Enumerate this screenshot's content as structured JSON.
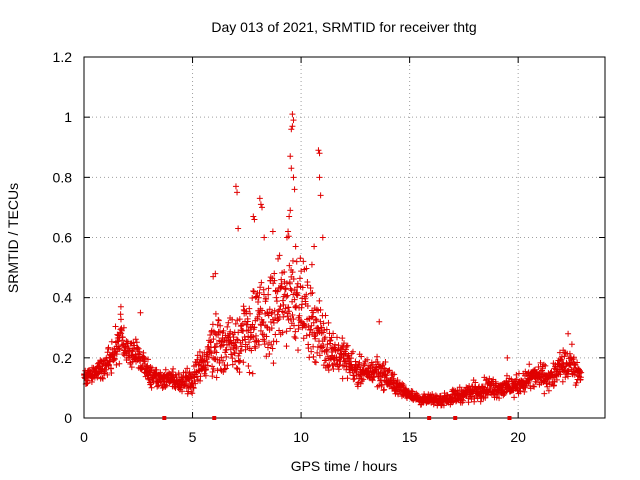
{
  "chart_data": {
    "type": "scatter",
    "title": "Day 013 of 2021, SRMTID for receiver thtg",
    "xlabel": "GPS time / hours",
    "ylabel": "SRMTID / TECUs",
    "xlim": [
      0,
      24
    ],
    "ylim": [
      0,
      1.2
    ],
    "x_ticks": [
      0,
      5,
      10,
      15,
      20
    ],
    "x_tick_labels": [
      "0",
      "5",
      "10",
      "15",
      "20"
    ],
    "y_ticks": [
      0,
      0.2,
      0.4,
      0.6,
      0.8,
      1,
      1.2
    ],
    "y_tick_labels": [
      "0",
      "0.2",
      "0.4",
      "0.6",
      "0.8",
      "1",
      "1.2"
    ],
    "grid": true,
    "marker": "+",
    "color": "#e00000",
    "axis_markers_x": [
      3.7,
      6.0,
      15.9,
      17.1,
      19.6
    ],
    "series": [
      {
        "name": "SRMTID",
        "profile_hours": [
          0,
          0.5,
          1,
          1.5,
          1.7,
          2,
          2.5,
          3,
          3.5,
          4,
          4.5,
          5,
          5.5,
          6,
          6.5,
          7,
          7.5,
          8,
          8.5,
          9,
          9.5,
          10,
          10.5,
          11,
          11.5,
          12,
          12.5,
          13,
          13.5,
          14,
          14.5,
          15,
          15.5,
          16,
          16.5,
          17,
          17.5,
          18,
          18.5,
          19,
          19.5,
          20,
          20.5,
          21,
          21.5,
          22,
          22.5,
          22.9
        ],
        "profile_mean_tecu": [
          0.14,
          0.15,
          0.18,
          0.23,
          0.28,
          0.22,
          0.2,
          0.15,
          0.13,
          0.13,
          0.12,
          0.13,
          0.18,
          0.25,
          0.24,
          0.26,
          0.28,
          0.32,
          0.33,
          0.36,
          0.42,
          0.38,
          0.32,
          0.26,
          0.22,
          0.2,
          0.16,
          0.15,
          0.16,
          0.13,
          0.1,
          0.08,
          0.06,
          0.06,
          0.06,
          0.07,
          0.08,
          0.09,
          0.1,
          0.1,
          0.1,
          0.11,
          0.13,
          0.14,
          0.13,
          0.17,
          0.18,
          0.13
        ],
        "profile_spread_tecu": [
          0.04,
          0.04,
          0.05,
          0.08,
          0.08,
          0.06,
          0.06,
          0.05,
          0.04,
          0.04,
          0.04,
          0.05,
          0.08,
          0.12,
          0.12,
          0.14,
          0.16,
          0.17,
          0.16,
          0.18,
          0.2,
          0.18,
          0.14,
          0.12,
          0.08,
          0.07,
          0.06,
          0.05,
          0.06,
          0.05,
          0.03,
          0.02,
          0.02,
          0.02,
          0.02,
          0.03,
          0.03,
          0.04,
          0.04,
          0.04,
          0.04,
          0.04,
          0.05,
          0.05,
          0.05,
          0.06,
          0.06,
          0.04
        ],
        "peak_points": [
          {
            "x": 9.6,
            "y": 1.01
          },
          {
            "x": 9.65,
            "y": 0.99
          },
          {
            "x": 9.55,
            "y": 0.96
          },
          {
            "x": 9.6,
            "y": 0.97
          },
          {
            "x": 9.5,
            "y": 0.87
          },
          {
            "x": 9.55,
            "y": 0.83
          },
          {
            "x": 9.65,
            "y": 0.8
          },
          {
            "x": 9.7,
            "y": 0.76
          },
          {
            "x": 10.8,
            "y": 0.89
          },
          {
            "x": 10.85,
            "y": 0.88
          },
          {
            "x": 10.85,
            "y": 0.8
          },
          {
            "x": 10.9,
            "y": 0.74
          },
          {
            "x": 7.0,
            "y": 0.77
          },
          {
            "x": 7.05,
            "y": 0.75
          },
          {
            "x": 7.1,
            "y": 0.63
          },
          {
            "x": 8.1,
            "y": 0.73
          },
          {
            "x": 8.15,
            "y": 0.71
          },
          {
            "x": 8.2,
            "y": 0.7
          },
          {
            "x": 7.8,
            "y": 0.67
          },
          {
            "x": 7.85,
            "y": 0.66
          },
          {
            "x": 9.35,
            "y": 0.6
          },
          {
            "x": 9.4,
            "y": 0.62
          },
          {
            "x": 9.45,
            "y": 0.67
          },
          {
            "x": 9.5,
            "y": 0.69
          },
          {
            "x": 9.75,
            "y": 0.57
          },
          {
            "x": 9.8,
            "y": 0.52
          },
          {
            "x": 8.7,
            "y": 0.62
          },
          {
            "x": 8.3,
            "y": 0.6
          },
          {
            "x": 6.05,
            "y": 0.48
          },
          {
            "x": 5.95,
            "y": 0.47
          },
          {
            "x": 11.0,
            "y": 0.6
          },
          {
            "x": 10.6,
            "y": 0.57
          },
          {
            "x": 10.5,
            "y": 0.51
          },
          {
            "x": 1.7,
            "y": 0.37
          },
          {
            "x": 2.6,
            "y": 0.35
          },
          {
            "x": 13.6,
            "y": 0.32
          },
          {
            "x": 22.3,
            "y": 0.28
          },
          {
            "x": 19.5,
            "y": 0.2
          }
        ]
      }
    ]
  }
}
